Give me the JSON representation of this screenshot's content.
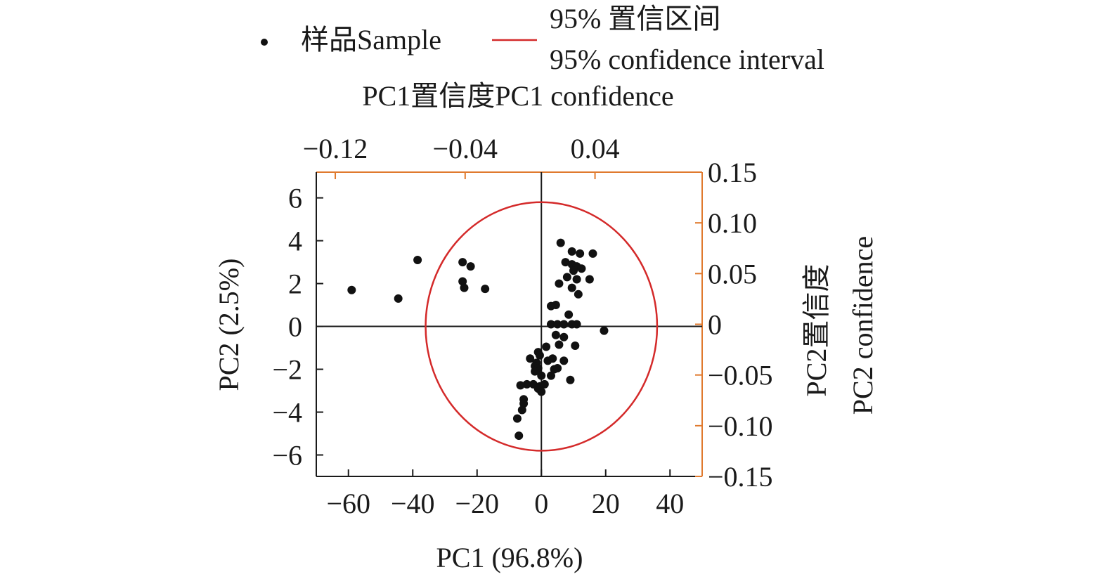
{
  "legend": {
    "sample_label": "样品Sample",
    "ci_label_line1": "95% 置信区间",
    "ci_label_line2": "95% confidence interval"
  },
  "colors": {
    "points": "#111111",
    "ellipse": "#d42a2a",
    "secondary_axes": "#e07a2e",
    "axes": "#1a1a1a"
  },
  "chart_data": {
    "type": "scatter",
    "xlabel": "PC1 (96.8%)",
    "ylabel": "PC2 (2.5%)",
    "xlim": [
      -70,
      50
    ],
    "ylim": [
      -7,
      7.2
    ],
    "x_ticks": [
      -60,
      -40,
      -20,
      0,
      20,
      40
    ],
    "y_ticks": [
      -6,
      -4,
      -2,
      0,
      2,
      4,
      6
    ],
    "x_tick_labels": [
      "−60",
      "−40",
      "−20",
      "0",
      "20",
      "40"
    ],
    "y_tick_labels": [
      "−6",
      "−4",
      "−2",
      "0",
      "2",
      "4",
      "6"
    ],
    "secondary_x": {
      "label": "PC1置信度PC1 confidence",
      "lim": [
        -0.1317,
        0.106
      ],
      "ticks": [
        -0.12,
        -0.04,
        0.04
      ],
      "tick_labels": [
        "−0.12",
        "−0.04",
        "0.04"
      ]
    },
    "secondary_y": {
      "label_line1": "PC2置信度",
      "label_line2": "PC2 confidence",
      "lim": [
        -0.15,
        0.15
      ],
      "ticks": [
        -0.15,
        -0.1,
        -0.05,
        0,
        0.05,
        0.1,
        0.15
      ],
      "tick_labels": [
        "−0.15",
        "−0.10",
        "−0.05",
        "0",
        "0.05",
        "0.10",
        "0.15"
      ]
    },
    "ellipse": {
      "cx": 0,
      "cy": 0,
      "rx": 36,
      "ry": 5.8
    },
    "series": [
      {
        "name": "样品Sample",
        "points": [
          [
            -59,
            1.7
          ],
          [
            -44.5,
            1.3
          ],
          [
            -38.5,
            3.1
          ],
          [
            -24.5,
            3.0
          ],
          [
            -22,
            2.8
          ],
          [
            -24.5,
            2.1
          ],
          [
            -24,
            1.8
          ],
          [
            -17.5,
            1.75
          ],
          [
            6,
            3.9
          ],
          [
            9.5,
            3.5
          ],
          [
            12,
            3.4
          ],
          [
            16,
            3.4
          ],
          [
            7.5,
            3.0
          ],
          [
            9.5,
            2.9
          ],
          [
            11,
            2.8
          ],
          [
            10,
            2.6
          ],
          [
            12.5,
            2.7
          ],
          [
            8,
            2.3
          ],
          [
            11,
            2.2
          ],
          [
            15,
            2.2
          ],
          [
            5.5,
            2.0
          ],
          [
            9.5,
            1.8
          ],
          [
            11.5,
            1.5
          ],
          [
            4.5,
            1.0
          ],
          [
            3,
            0.95
          ],
          [
            8.5,
            0.55
          ],
          [
            3,
            0.1
          ],
          [
            5,
            0.1
          ],
          [
            7,
            0.1
          ],
          [
            9.5,
            0.1
          ],
          [
            11,
            0.1
          ],
          [
            19.5,
            -0.2
          ],
          [
            4.5,
            -0.4
          ],
          [
            7,
            -0.5
          ],
          [
            1.5,
            -0.95
          ],
          [
            5.5,
            -0.85
          ],
          [
            10.5,
            -0.9
          ],
          [
            -1,
            -1.2
          ],
          [
            -0.5,
            -1.35
          ],
          [
            -3.5,
            -1.5
          ],
          [
            -1.5,
            -1.7
          ],
          [
            2,
            -1.6
          ],
          [
            3.5,
            -1.5
          ],
          [
            7,
            -1.6
          ],
          [
            -2,
            -1.85
          ],
          [
            -1,
            -1.95
          ],
          [
            -2,
            -2.1
          ],
          [
            4,
            -2.0
          ],
          [
            5,
            -1.95
          ],
          [
            0,
            -2.3
          ],
          [
            3,
            -2.3
          ],
          [
            -4.5,
            -2.7
          ],
          [
            -2.5,
            -2.7
          ],
          [
            -0.5,
            -2.8
          ],
          [
            1,
            -2.7
          ],
          [
            9,
            -2.5
          ],
          [
            -6.5,
            -2.75
          ],
          [
            -1,
            -2.9
          ],
          [
            0,
            -3.05
          ],
          [
            -5.5,
            -3.4
          ],
          [
            -5.5,
            -3.6
          ],
          [
            -6,
            -3.9
          ],
          [
            -7.5,
            -4.3
          ],
          [
            -7,
            -5.1
          ]
        ]
      }
    ]
  }
}
